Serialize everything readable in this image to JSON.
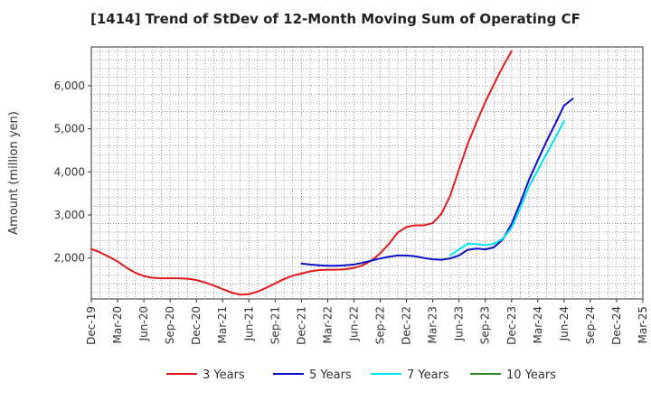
{
  "chart_data": {
    "type": "line",
    "title": "[1414]  Trend of StDev of 12-Month Moving Sum of Operating CF",
    "xlabel": "",
    "ylabel": "Amount (million yen)",
    "x_tick_labels": [
      "Dec-19",
      "Mar-20",
      "Jun-20",
      "Sep-20",
      "Dec-20",
      "Mar-21",
      "Jun-21",
      "Sep-21",
      "Dec-21",
      "Mar-22",
      "Jun-22",
      "Sep-22",
      "Dec-22",
      "Mar-23",
      "Jun-23",
      "Sep-23",
      "Dec-23",
      "Mar-24",
      "Jun-24",
      "Sep-24",
      "Dec-24",
      "Mar-25"
    ],
    "y_ticks": [
      2000,
      3000,
      4000,
      5000,
      6000
    ],
    "y_tick_labels": [
      "2,000",
      "3,000",
      "4,000",
      "5,000",
      "6,000"
    ],
    "ylim": [
      1050,
      6900
    ],
    "grid": true,
    "legend_position": "bottom",
    "series": [
      {
        "name": "3 Years",
        "color": "#e31a1c",
        "points": [
          [
            0,
            2210
          ],
          [
            1,
            2130
          ],
          [
            2,
            2030
          ],
          [
            3,
            1920
          ],
          [
            4,
            1780
          ],
          [
            5,
            1660
          ],
          [
            6,
            1580
          ],
          [
            7,
            1540
          ],
          [
            8,
            1530
          ],
          [
            9,
            1530
          ],
          [
            10,
            1530
          ],
          [
            11,
            1520
          ],
          [
            12,
            1490
          ],
          [
            13,
            1430
          ],
          [
            14,
            1360
          ],
          [
            15,
            1280
          ],
          [
            16,
            1200
          ],
          [
            17,
            1150
          ],
          [
            18,
            1160
          ],
          [
            19,
            1220
          ],
          [
            20,
            1310
          ],
          [
            21,
            1410
          ],
          [
            22,
            1510
          ],
          [
            23,
            1590
          ],
          [
            24,
            1640
          ],
          [
            25,
            1690
          ],
          [
            26,
            1720
          ],
          [
            27,
            1730
          ],
          [
            28,
            1730
          ],
          [
            29,
            1740
          ],
          [
            30,
            1770
          ],
          [
            31,
            1830
          ],
          [
            32,
            1940
          ],
          [
            33,
            2110
          ],
          [
            34,
            2330
          ],
          [
            35,
            2590
          ],
          [
            36,
            2720
          ],
          [
            37,
            2760
          ],
          [
            38,
            2760
          ],
          [
            39,
            2810
          ],
          [
            40,
            3030
          ],
          [
            41,
            3450
          ],
          [
            42,
            4060
          ],
          [
            43,
            4650
          ],
          [
            44,
            5150
          ],
          [
            45,
            5620
          ],
          [
            46,
            6040
          ],
          [
            47,
            6440
          ],
          [
            48,
            6800
          ]
        ]
      },
      {
        "name": "5 Years",
        "color": "#0a10c8",
        "points": [
          [
            24,
            1870
          ],
          [
            25,
            1850
          ],
          [
            26,
            1830
          ],
          [
            27,
            1820
          ],
          [
            28,
            1820
          ],
          [
            29,
            1830
          ],
          [
            30,
            1850
          ],
          [
            31,
            1890
          ],
          [
            32,
            1940
          ],
          [
            33,
            1990
          ],
          [
            34,
            2030
          ],
          [
            35,
            2060
          ],
          [
            36,
            2060
          ],
          [
            37,
            2040
          ],
          [
            38,
            2000
          ],
          [
            39,
            1970
          ],
          [
            40,
            1960
          ],
          [
            41,
            1990
          ],
          [
            42,
            2060
          ],
          [
            43,
            2190
          ],
          [
            44,
            2220
          ],
          [
            45,
            2200
          ],
          [
            46,
            2250
          ],
          [
            47,
            2430
          ],
          [
            48,
            2790
          ],
          [
            49,
            3280
          ],
          [
            50,
            3820
          ],
          [
            51,
            4270
          ],
          [
            52,
            4710
          ],
          [
            53,
            5120
          ],
          [
            54,
            5540
          ],
          [
            55,
            5700
          ]
        ]
      },
      {
        "name": "7 Years",
        "color": "#00e5ee",
        "points": [
          [
            41,
            2060
          ],
          [
            42,
            2200
          ],
          [
            43,
            2330
          ],
          [
            44,
            2320
          ],
          [
            45,
            2300
          ],
          [
            46,
            2330
          ],
          [
            47,
            2450
          ],
          [
            48,
            2700
          ],
          [
            49,
            3160
          ],
          [
            50,
            3660
          ],
          [
            51,
            4040
          ],
          [
            52,
            4420
          ],
          [
            53,
            4790
          ],
          [
            54,
            5180
          ]
        ]
      },
      {
        "name": "10 Years",
        "color": "#2e8b24",
        "points": []
      }
    ]
  }
}
